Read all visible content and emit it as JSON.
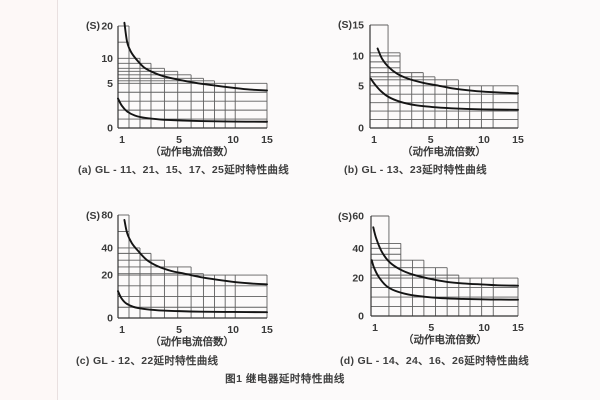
{
  "page": {
    "figure_caption": "图1 继电器延时特性曲线"
  },
  "chart_data": [
    {
      "id": "a",
      "type": "line",
      "caption": "(a) GL - 11、21、15、17、25延时特性曲线",
      "unit_label": "(S)",
      "xlabel": "（动作电流倍数）",
      "x_axis_range": [
        1,
        15
      ],
      "x_ticks": [
        {
          "v": 1,
          "f": 0
        },
        {
          "v": 5,
          "f": 0.41
        },
        {
          "v": 10,
          "f": 0.773
        },
        {
          "v": 15,
          "f": 1
        }
      ],
      "y_ticks": [
        {
          "v": 0,
          "f": 0
        },
        {
          "v": 5,
          "f": 0.438
        },
        {
          "v": 10,
          "f": 0.683
        },
        {
          "v": 20,
          "f": 1
        }
      ],
      "x_steps": [
        1,
        1.72,
        2.44,
        3.16,
        4.04,
        4.91,
        6.11,
        7.25,
        8.27,
        9.26,
        10.3,
        15
      ],
      "column_tops_s": [
        20,
        10,
        9,
        8,
        7.4,
        6.7,
        6,
        5.5,
        5,
        5,
        5
      ],
      "gridlines_s": [
        1,
        2,
        3,
        4,
        5,
        5.5,
        6,
        6.7,
        7.4,
        8,
        9,
        10,
        15,
        20
      ],
      "curves": [
        {
          "name": "upper-limit",
          "points": [
            [
              1.42,
              21
            ],
            [
              1.6,
              15
            ],
            [
              1.85,
              12
            ],
            [
              2.2,
              9.8
            ],
            [
              2.7,
              8.2
            ],
            [
              3.3,
              7.2
            ],
            [
              4,
              6.4
            ],
            [
              5,
              5.7
            ],
            [
              6.5,
              5.1
            ],
            [
              8,
              4.8
            ],
            [
              10,
              4.5
            ],
            [
              12.5,
              4.3
            ],
            [
              15,
              4.2
            ]
          ]
        },
        {
          "name": "lower-limit",
          "points": [
            [
              1.0,
              3.3
            ],
            [
              1.25,
              2.5
            ],
            [
              1.6,
              1.85
            ],
            [
              2.1,
              1.4
            ],
            [
              2.8,
              1.12
            ],
            [
              3.8,
              0.95
            ],
            [
              5,
              0.85
            ],
            [
              7,
              0.78
            ],
            [
              10,
              0.72
            ],
            [
              15,
              0.7
            ]
          ]
        }
      ]
    },
    {
      "id": "b",
      "type": "line",
      "caption": "(b) GL - 13、23延时特性曲线",
      "unit_label": "(S)",
      "xlabel": "（动作电流倍数）",
      "x_axis_range": [
        1,
        15
      ],
      "x_ticks": [
        {
          "v": 1,
          "f": 0
        },
        {
          "v": 5,
          "f": 0.41
        },
        {
          "v": 10,
          "f": 0.77
        },
        {
          "v": 15,
          "f": 1
        }
      ],
      "y_ticks": [
        {
          "v": 0,
          "f": 0
        },
        {
          "v": 5,
          "f": 0.41
        },
        {
          "v": 10,
          "f": 0.7
        },
        {
          "v": 15,
          "f": 1
        }
      ],
      "x_steps": [
        1,
        2.19,
        2.98,
        3.75,
        4.51,
        5.4,
        6.5,
        7.6,
        8.66,
        9.76,
        11.34,
        15
      ],
      "column_tops_s": [
        15,
        10.5,
        7.2,
        7.2,
        6.5,
        6,
        6,
        5,
        5,
        5,
        5
      ],
      "gridlines_s": [
        1,
        2,
        3,
        4,
        5,
        6,
        6.5,
        7.2,
        8,
        9,
        10,
        10.5,
        15
      ],
      "curves": [
        {
          "name": "upper-limit",
          "points": [
            [
              1.5,
              11.2
            ],
            [
              1.8,
              9.5
            ],
            [
              2.2,
              8.2
            ],
            [
              2.8,
              7.0
            ],
            [
              3.5,
              6.2
            ],
            [
              4.5,
              5.5
            ],
            [
              5.5,
              5.1
            ],
            [
              7,
              4.7
            ],
            [
              9,
              4.4
            ],
            [
              11,
              4.25
            ],
            [
              15,
              4.1
            ]
          ]
        },
        {
          "name": "lower-limit",
          "points": [
            [
              1.05,
              6.2
            ],
            [
              1.3,
              5.3
            ],
            [
              1.7,
              4.4
            ],
            [
              2.2,
              3.7
            ],
            [
              3,
              3.1
            ],
            [
              4,
              2.7
            ],
            [
              5.5,
              2.45
            ],
            [
              7.5,
              2.3
            ],
            [
              10,
              2.2
            ],
            [
              15,
              2.15
            ]
          ]
        }
      ]
    },
    {
      "id": "c",
      "type": "line",
      "caption": "(c) GL - 12、22延时特性曲线",
      "unit_label": "(S)",
      "xlabel": "（动作电流倍数）",
      "x_axis_range": [
        1,
        15
      ],
      "x_ticks": [
        {
          "v": 1,
          "f": 0
        },
        {
          "v": 5,
          "f": 0.41
        },
        {
          "v": 10,
          "f": 0.773
        },
        {
          "v": 15,
          "f": 1
        }
      ],
      "y_ticks": [
        {
          "v": 0,
          "f": 0
        },
        {
          "v": 20,
          "f": 0.417
        },
        {
          "v": 40,
          "f": 0.68
        },
        {
          "v": 80,
          "f": 1
        }
      ],
      "x_steps": [
        1,
        1.72,
        2.44,
        3.16,
        4.04,
        4.91,
        6.11,
        7.25,
        8.27,
        9.26,
        10.3,
        15
      ],
      "column_tops_s": [
        80,
        40,
        36,
        31,
        26,
        26,
        21,
        20,
        20,
        20,
        20
      ],
      "gridlines_s": [
        5,
        10,
        15,
        20,
        21,
        26,
        31,
        36,
        40,
        60,
        80
      ],
      "curves": [
        {
          "name": "upper-limit",
          "points": [
            [
              1.42,
              74
            ],
            [
              1.6,
              58
            ],
            [
              1.9,
              46
            ],
            [
              2.3,
              38
            ],
            [
              2.9,
              31
            ],
            [
              3.6,
              26.5
            ],
            [
              4.5,
              23
            ],
            [
              5.5,
              21
            ],
            [
              7,
              19
            ],
            [
              9,
              17.5
            ],
            [
              11,
              16.5
            ],
            [
              13,
              16
            ],
            [
              15,
              15.7
            ]
          ]
        },
        {
          "name": "lower-limit",
          "points": [
            [
              1.0,
              12.5
            ],
            [
              1.2,
              9.5
            ],
            [
              1.5,
              7
            ],
            [
              2,
              5.2
            ],
            [
              2.7,
              4.2
            ],
            [
              3.6,
              3.6
            ],
            [
              5,
              3.2
            ],
            [
              7,
              2.95
            ],
            [
              10,
              2.8
            ],
            [
              15,
              2.7
            ]
          ]
        }
      ]
    },
    {
      "id": "d",
      "type": "line",
      "caption": "(d) GL - 14、24、16、26延时特性曲线",
      "unit_label": "(S)",
      "xlabel": "（动作电流倍数）",
      "x_axis_range": [
        1,
        15
      ],
      "x_ticks": [
        {
          "v": 1,
          "f": 0
        },
        {
          "v": 5,
          "f": 0.41
        },
        {
          "v": 10,
          "f": 0.77
        },
        {
          "v": 15,
          "f": 1
        }
      ],
      "y_ticks": [
        {
          "v": 0,
          "f": 0
        },
        {
          "v": 20,
          "f": 0.379
        },
        {
          "v": 40,
          "f": 0.677
        },
        {
          "v": 60,
          "f": 1
        }
      ],
      "x_steps": [
        1,
        2.19,
        2.98,
        3.75,
        4.51,
        5.4,
        6.5,
        7.6,
        8.66,
        9.76,
        11.34,
        15
      ],
      "column_tops_s": [
        60,
        43,
        32,
        32,
        27,
        27,
        22,
        20,
        20,
        20,
        20
      ],
      "gridlines_s": [
        5,
        10,
        15,
        20,
        22,
        27,
        32,
        36,
        40,
        43,
        60
      ],
      "curves": [
        {
          "name": "upper-limit",
          "points": [
            [
              1.15,
              53
            ],
            [
              1.35,
              46
            ],
            [
              1.7,
              38
            ],
            [
              2.2,
              31
            ],
            [
              2.9,
              26
            ],
            [
              3.8,
              22.3
            ],
            [
              5,
              19.5
            ],
            [
              6.5,
              18
            ],
            [
              8,
              17.2
            ],
            [
              10,
              16.6
            ],
            [
              12,
              16.2
            ],
            [
              15,
              16
            ]
          ]
        },
        {
          "name": "lower-limit",
          "points": [
            [
              1.05,
              32
            ],
            [
              1.2,
              27
            ],
            [
              1.5,
              21
            ],
            [
              2,
              16
            ],
            [
              2.6,
              13.3
            ],
            [
              3.5,
              11.3
            ],
            [
              4.5,
              10.2
            ],
            [
              6,
              9.4
            ],
            [
              8,
              9
            ],
            [
              11,
              8.7
            ],
            [
              15,
              8.6
            ]
          ]
        }
      ]
    }
  ]
}
